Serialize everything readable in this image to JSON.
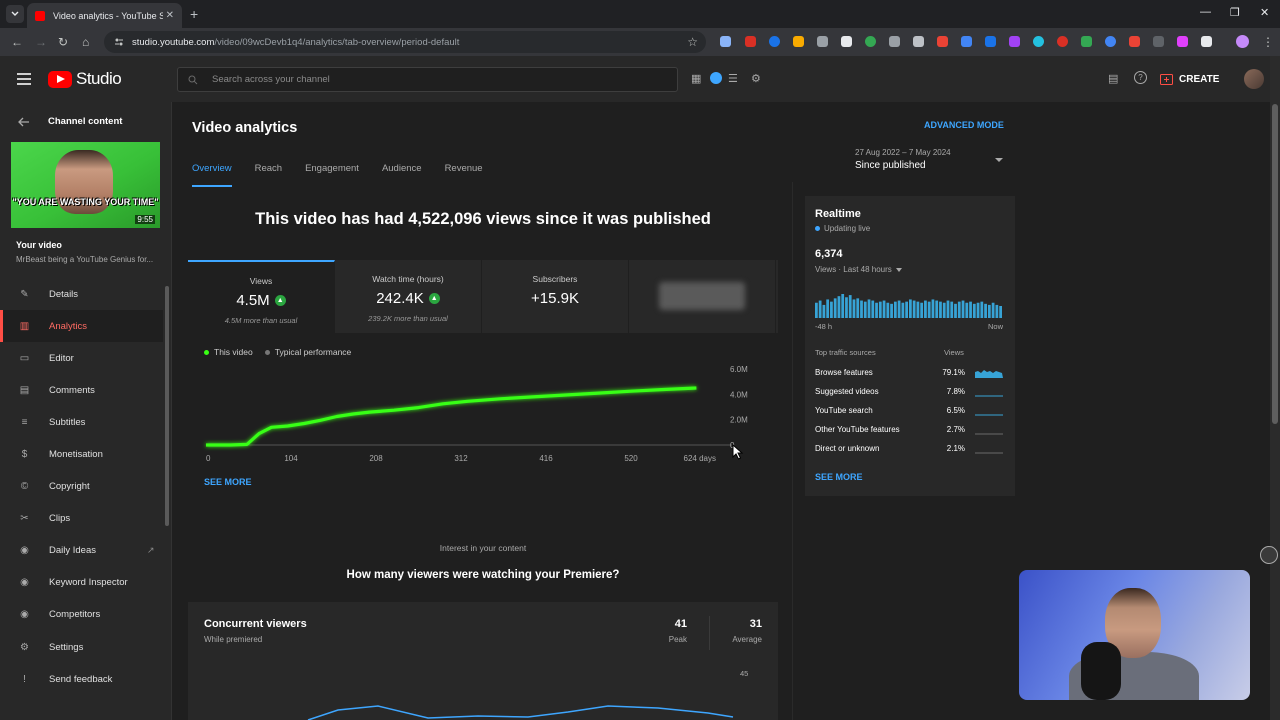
{
  "browser": {
    "tab_title": "Video analytics - YouTube Studio",
    "url_host": "studio.youtube.com",
    "url_path": "/video/09wcDevb1q4/analytics/tab-overview/period-default"
  },
  "header": {
    "brand": "Studio",
    "search_placeholder": "Search across your channel",
    "create_label": "CREATE"
  },
  "sidebar": {
    "back_label": "Channel content",
    "thumb_caption": "\"YOU ARE WASTING YOUR TIME\"",
    "thumb_duration": "9:55",
    "your_video": "Your video",
    "video_title": "MrBeast being a YouTube Genius for...",
    "items": [
      {
        "label": "Details",
        "icon": "pencil-icon"
      },
      {
        "label": "Analytics",
        "icon": "analytics-icon"
      },
      {
        "label": "Editor",
        "icon": "editor-icon"
      },
      {
        "label": "Comments",
        "icon": "comments-icon"
      },
      {
        "label": "Subtitles",
        "icon": "subtitles-icon"
      },
      {
        "label": "Monetisation",
        "icon": "dollar-icon"
      },
      {
        "label": "Copyright",
        "icon": "copyright-icon"
      },
      {
        "label": "Clips",
        "icon": "scissors-icon"
      },
      {
        "label": "Daily Ideas",
        "icon": "ideas-icon"
      },
      {
        "label": "Keyword Inspector",
        "icon": "keyword-icon"
      },
      {
        "label": "Competitors",
        "icon": "competitors-icon"
      }
    ],
    "bottom": [
      {
        "label": "Settings",
        "icon": "gear-icon"
      },
      {
        "label": "Send feedback",
        "icon": "feedback-icon"
      }
    ]
  },
  "main": {
    "title": "Video analytics",
    "advanced_mode": "ADVANCED MODE",
    "tabs": [
      "Overview",
      "Reach",
      "Engagement",
      "Audience",
      "Revenue"
    ],
    "period_range": "27 Aug 2022 – 7 May 2024",
    "period_label": "Since published",
    "headline": "This video has had 4,522,096 views since it was published",
    "metrics": [
      {
        "label": "Views",
        "value": "4.5M",
        "sub": "4.5M more than usual"
      },
      {
        "label": "Watch time (hours)",
        "value": "242.4K",
        "sub": "239.2K more than usual"
      },
      {
        "label": "Subscribers",
        "value": "+15.9K",
        "sub": ""
      }
    ],
    "legend": {
      "this_video": "This video",
      "typical": "Typical performance"
    },
    "see_more": "SEE MORE",
    "interest": "Interest in your content",
    "premiere_question": "How many viewers were watching your Premiere?",
    "concurrent": {
      "title": "Concurrent viewers",
      "subtitle": "While premiered",
      "peak": "41",
      "peak_label": "Peak",
      "average": "31",
      "average_label": "Average",
      "axis_label": "45"
    }
  },
  "realtime": {
    "title": "Realtime",
    "status": "Updating live",
    "count": "6,374",
    "period": "Views · Last 48 hours",
    "axis_start": "-48 h",
    "axis_end": "Now",
    "col_source": "Top traffic sources",
    "col_views": "Views",
    "sources": [
      {
        "name": "Browse features",
        "pct": "79.1%"
      },
      {
        "name": "Suggested videos",
        "pct": "7.8%"
      },
      {
        "name": "YouTube search",
        "pct": "6.5%"
      },
      {
        "name": "Other YouTube features",
        "pct": "2.7%"
      },
      {
        "name": "Direct or unknown",
        "pct": "2.1%"
      }
    ],
    "see_more": "SEE MORE",
    "bar_values": [
      14,
      16,
      12,
      17,
      15,
      18,
      20,
      22,
      19,
      21,
      17,
      18,
      16,
      15,
      17,
      16,
      14,
      15,
      16,
      14,
      13,
      15,
      16,
      14,
      15,
      17,
      16,
      15,
      14,
      16,
      15,
      17,
      16,
      15,
      14,
      16,
      15,
      13,
      15,
      16,
      14,
      15,
      13,
      14,
      15,
      13,
      12,
      14,
      12,
      11
    ]
  },
  "chart_data": {
    "type": "line",
    "title": "Views",
    "xlabel": "days",
    "ylabel": "",
    "x_ticks": [
      "0",
      "104",
      "208",
      "312",
      "416",
      "520",
      "624 days"
    ],
    "y_ticks": [
      "0",
      "2.0M",
      "4.0M",
      "6.0M"
    ],
    "xlim": [
      0,
      624
    ],
    "ylim": [
      0,
      6000000
    ],
    "series": [
      {
        "name": "This video",
        "color": "#39ff14",
        "x": [
          0,
          30,
          50,
          65,
          80,
          100,
          120,
          140,
          160,
          180,
          200,
          230,
          260,
          290,
          320,
          360,
          400,
          440,
          480,
          520,
          560,
          600
        ],
        "y": [
          0,
          0,
          50000,
          900000,
          1400000,
          1500000,
          1700000,
          1950000,
          2250000,
          2450000,
          2600000,
          2750000,
          2950000,
          3250000,
          3450000,
          3650000,
          3800000,
          3950000,
          4100000,
          4250000,
          4380000,
          4500000
        ]
      }
    ]
  }
}
